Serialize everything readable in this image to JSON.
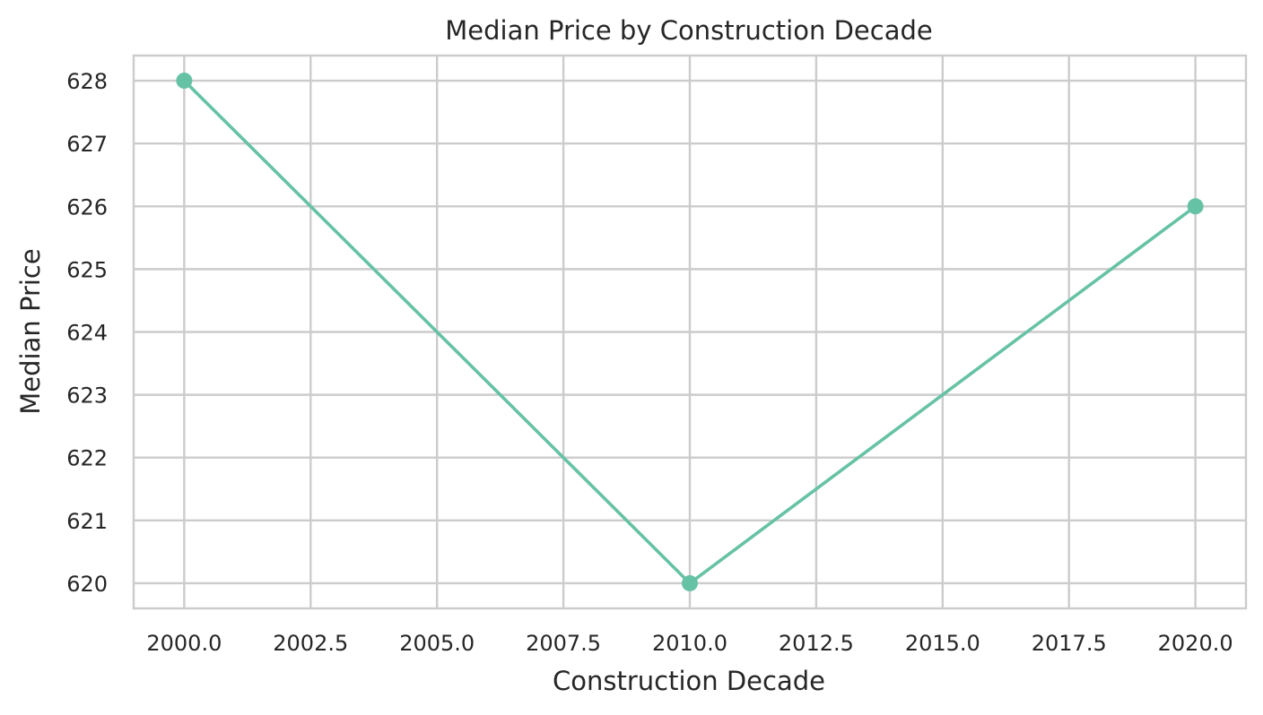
{
  "chart_data": {
    "type": "line",
    "title": "Median Price by Construction Decade",
    "xlabel": "Construction Decade",
    "ylabel": "Median Price",
    "xlim": [
      1999.0,
      2021.0
    ],
    "ylim": [
      619.6,
      628.4
    ],
    "x_ticks": [
      2000.0,
      2002.5,
      2005.0,
      2007.5,
      2010.0,
      2012.5,
      2015.0,
      2017.5,
      2020.0
    ],
    "x_tick_labels": [
      "2000.0",
      "2002.5",
      "2005.0",
      "2007.5",
      "2010.0",
      "2012.5",
      "2015.0",
      "2017.5",
      "2020.0"
    ],
    "y_ticks": [
      620,
      621,
      622,
      623,
      624,
      625,
      626,
      627,
      628
    ],
    "y_tick_labels": [
      "620",
      "621",
      "622",
      "623",
      "624",
      "625",
      "626",
      "627",
      "628"
    ],
    "grid": true,
    "legend": "none",
    "series": [
      {
        "x": [
          2000,
          2010,
          2020
        ],
        "values": [
          628,
          620,
          626
        ],
        "color": "#66c2a5",
        "marker": "circle"
      }
    ]
  }
}
